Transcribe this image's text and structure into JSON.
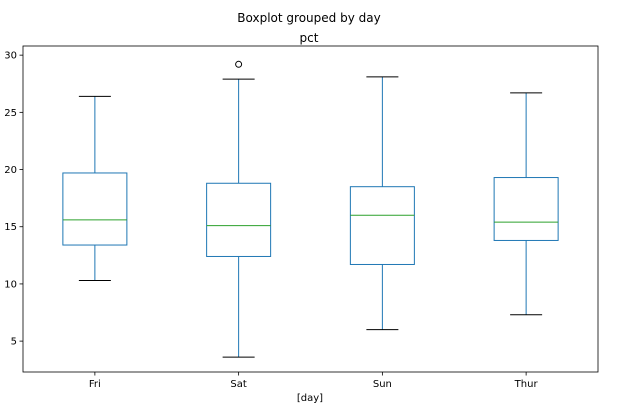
{
  "chart_data": {
    "type": "box",
    "suptitle": "Boxplot grouped by day",
    "title": "pct",
    "xlabel": "[day]",
    "ylabel": "",
    "categories": [
      "Fri",
      "Sat",
      "Sun",
      "Thur"
    ],
    "ylim": [
      2.3,
      30.8
    ],
    "yticks": [
      5,
      10,
      15,
      20,
      25,
      30
    ],
    "grid": false,
    "boxes": [
      {
        "category": "Fri",
        "whislo": 10.3,
        "q1": 13.4,
        "med": 15.6,
        "q3": 19.7,
        "whishi": 26.4,
        "fliers": []
      },
      {
        "category": "Sat",
        "whislo": 3.6,
        "q1": 12.4,
        "med": 15.1,
        "q3": 18.8,
        "whishi": 27.9,
        "fliers": [
          29.2
        ]
      },
      {
        "category": "Sun",
        "whislo": 6.0,
        "q1": 11.7,
        "med": 16.0,
        "q3": 18.5,
        "whishi": 28.1,
        "fliers": []
      },
      {
        "category": "Thur",
        "whislo": 7.3,
        "q1": 13.8,
        "med": 15.4,
        "q3": 19.3,
        "whishi": 26.7,
        "fliers": []
      }
    ],
    "colors": {
      "box": "#1f77b4",
      "median": "#2ca02c",
      "axis": "#000000"
    }
  }
}
